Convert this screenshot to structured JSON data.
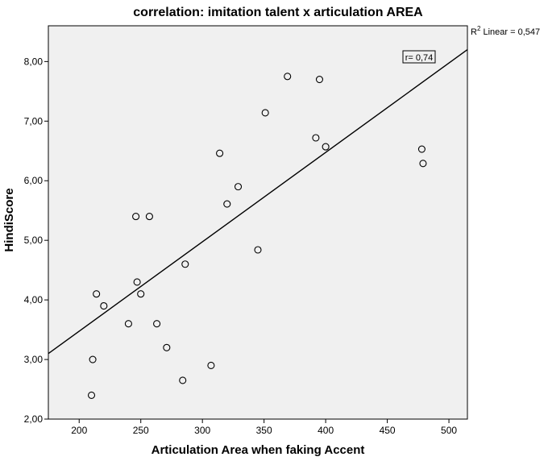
{
  "chart_data": {
    "type": "scatter",
    "title": "correlation: imitation talent x articulation AREA",
    "xlabel": "Articulation Area when faking Accent",
    "ylabel": "HindiScore",
    "xlim": [
      175,
      515
    ],
    "ylim": [
      2.0,
      8.6
    ],
    "x_ticks": [
      200,
      250,
      300,
      350,
      400,
      450,
      500
    ],
    "x_tick_labels": [
      "200",
      "250",
      "300",
      "350",
      "400",
      "450",
      "500"
    ],
    "y_ticks": [
      2,
      3,
      4,
      5,
      6,
      7,
      8
    ],
    "y_tick_labels": [
      "2,00",
      "3,00",
      "4,00",
      "5,00",
      "6,00",
      "7,00",
      "8,00"
    ],
    "grid": false,
    "points": [
      {
        "x": 210,
        "y": 2.4
      },
      {
        "x": 211,
        "y": 3.0
      },
      {
        "x": 214,
        "y": 4.1
      },
      {
        "x": 220,
        "y": 3.9
      },
      {
        "x": 240,
        "y": 3.6
      },
      {
        "x": 246,
        "y": 5.4
      },
      {
        "x": 247,
        "y": 4.3
      },
      {
        "x": 250,
        "y": 4.1
      },
      {
        "x": 257,
        "y": 5.4
      },
      {
        "x": 263,
        "y": 3.6
      },
      {
        "x": 271,
        "y": 3.2
      },
      {
        "x": 284,
        "y": 2.65
      },
      {
        "x": 286,
        "y": 4.6
      },
      {
        "x": 307,
        "y": 2.9
      },
      {
        "x": 314,
        "y": 6.46
      },
      {
        "x": 320,
        "y": 5.61
      },
      {
        "x": 329,
        "y": 5.9
      },
      {
        "x": 345,
        "y": 4.84
      },
      {
        "x": 351,
        "y": 7.14
      },
      {
        "x": 369,
        "y": 7.75
      },
      {
        "x": 392,
        "y": 6.72
      },
      {
        "x": 395,
        "y": 7.7
      },
      {
        "x": 400,
        "y": 6.57
      },
      {
        "x": 478,
        "y": 6.53
      },
      {
        "x": 479,
        "y": 6.29
      }
    ],
    "fit_line": {
      "x": [
        175,
        515
      ],
      "y": [
        3.1,
        8.2
      ]
    },
    "r_squared_label": {
      "prefix": "R",
      "superscript": "2",
      "text": " Linear = 0,547"
    },
    "r_label": "r= 0,74"
  }
}
